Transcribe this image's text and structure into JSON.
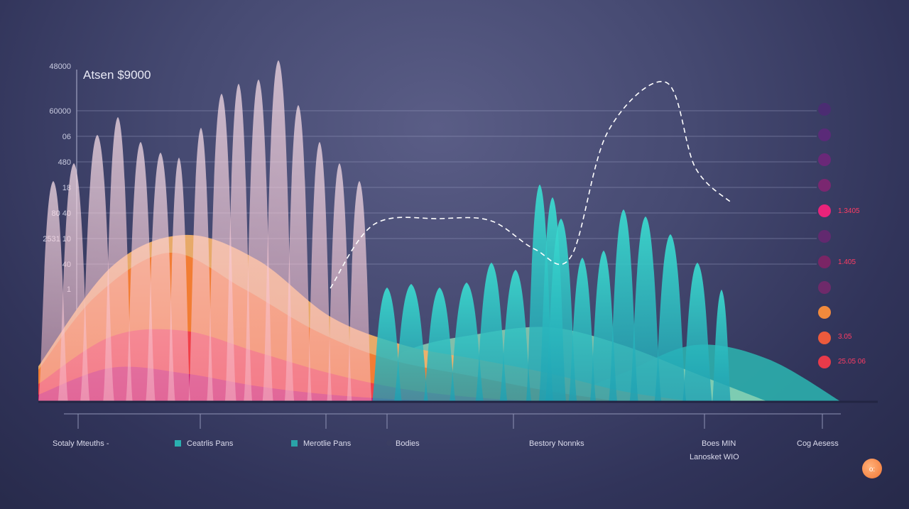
{
  "chart_data": {
    "type": "area",
    "title": "Atsen $9000",
    "y_ticks": [
      "48000",
      "60000",
      "06",
      "480",
      "18",
      "80 40",
      "2531 10",
      "40",
      "1"
    ],
    "right_labels": [
      "1.3405",
      "1.405",
      "3.05",
      "25.05 06"
    ],
    "legend": [
      {
        "label": "Sotaly Mteuths -",
        "marker": "none"
      },
      {
        "label": "Ceatrlis Pans",
        "marker": "square",
        "color": "#2ab0b0"
      },
      {
        "label": "Merotlie Pans",
        "marker": "square",
        "color": "#2aa3a8"
      },
      {
        "label": "Bodies",
        "marker": "dot",
        "color": "#3b3e62"
      },
      {
        "label": "Bestory Nonnks",
        "marker": "none"
      },
      {
        "label": "Boes MIN",
        "marker": "none"
      },
      {
        "label": "Lanosket WIO",
        "marker": "none"
      },
      {
        "label": "Cog Aesess",
        "marker": "none"
      }
    ],
    "badge_label": "o:",
    "dot_colors": [
      "#4b2c72",
      "#5a2a78",
      "#6a2878",
      "#7a2770",
      "#e8237a",
      "#62296f",
      "#7a2565",
      "#6e2a6a",
      "#f28a3c",
      "#ec5a3c",
      "#e83a4a"
    ],
    "series": [
      {
        "name": "",
        "color": "#c8126c",
        "x": [
          0,
          10,
          20,
          30,
          40,
          50,
          60
        ],
        "values": [
          10,
          48,
          40,
          22,
          10,
          3,
          0
        ]
      },
      {
        "name": "",
        "color": "#f03c4a",
        "x": [
          0,
          10,
          20,
          30,
          40,
          50,
          60,
          70
        ],
        "values": [
          25,
          92,
          100,
          70,
          40,
          18,
          6,
          0
        ]
      },
      {
        "name": "",
        "color": "#f27a30",
        "x": [
          0,
          8,
          18,
          28,
          38,
          48,
          60,
          70,
          80
        ],
        "values": [
          45,
          150,
          210,
          160,
          100,
          60,
          35,
          15,
          0
        ]
      },
      {
        "name": "",
        "color": "#f0b068",
        "x": [
          0,
          10,
          20,
          30,
          40,
          50,
          60,
          70,
          80,
          90
        ],
        "values": [
          50,
          190,
          235,
          200,
          120,
          80,
          60,
          40,
          15,
          0
        ]
      },
      {
        "name": "",
        "color": "#8cd3b4",
        "x": [
          40,
          50,
          60,
          70,
          80,
          90,
          100
        ],
        "values": [
          0,
          70,
          95,
          105,
          80,
          40,
          0
        ]
      },
      {
        "name": "",
        "color": "#2bb6b2",
        "x": [
          70,
          80,
          90,
          100,
          110
        ],
        "values": [
          0,
          40,
          80,
          60,
          0
        ]
      }
    ],
    "dashed_line": {
      "x": [
        40,
        46,
        55,
        62,
        68,
        73,
        78,
        86,
        90,
        95
      ],
      "y": [
        160,
        250,
        258,
        255,
        215,
        205,
        380,
        450,
        330,
        280
      ]
    },
    "ylim": [
      0,
      470
    ],
    "xlim": [
      0,
      115
    ],
    "grid": true
  }
}
